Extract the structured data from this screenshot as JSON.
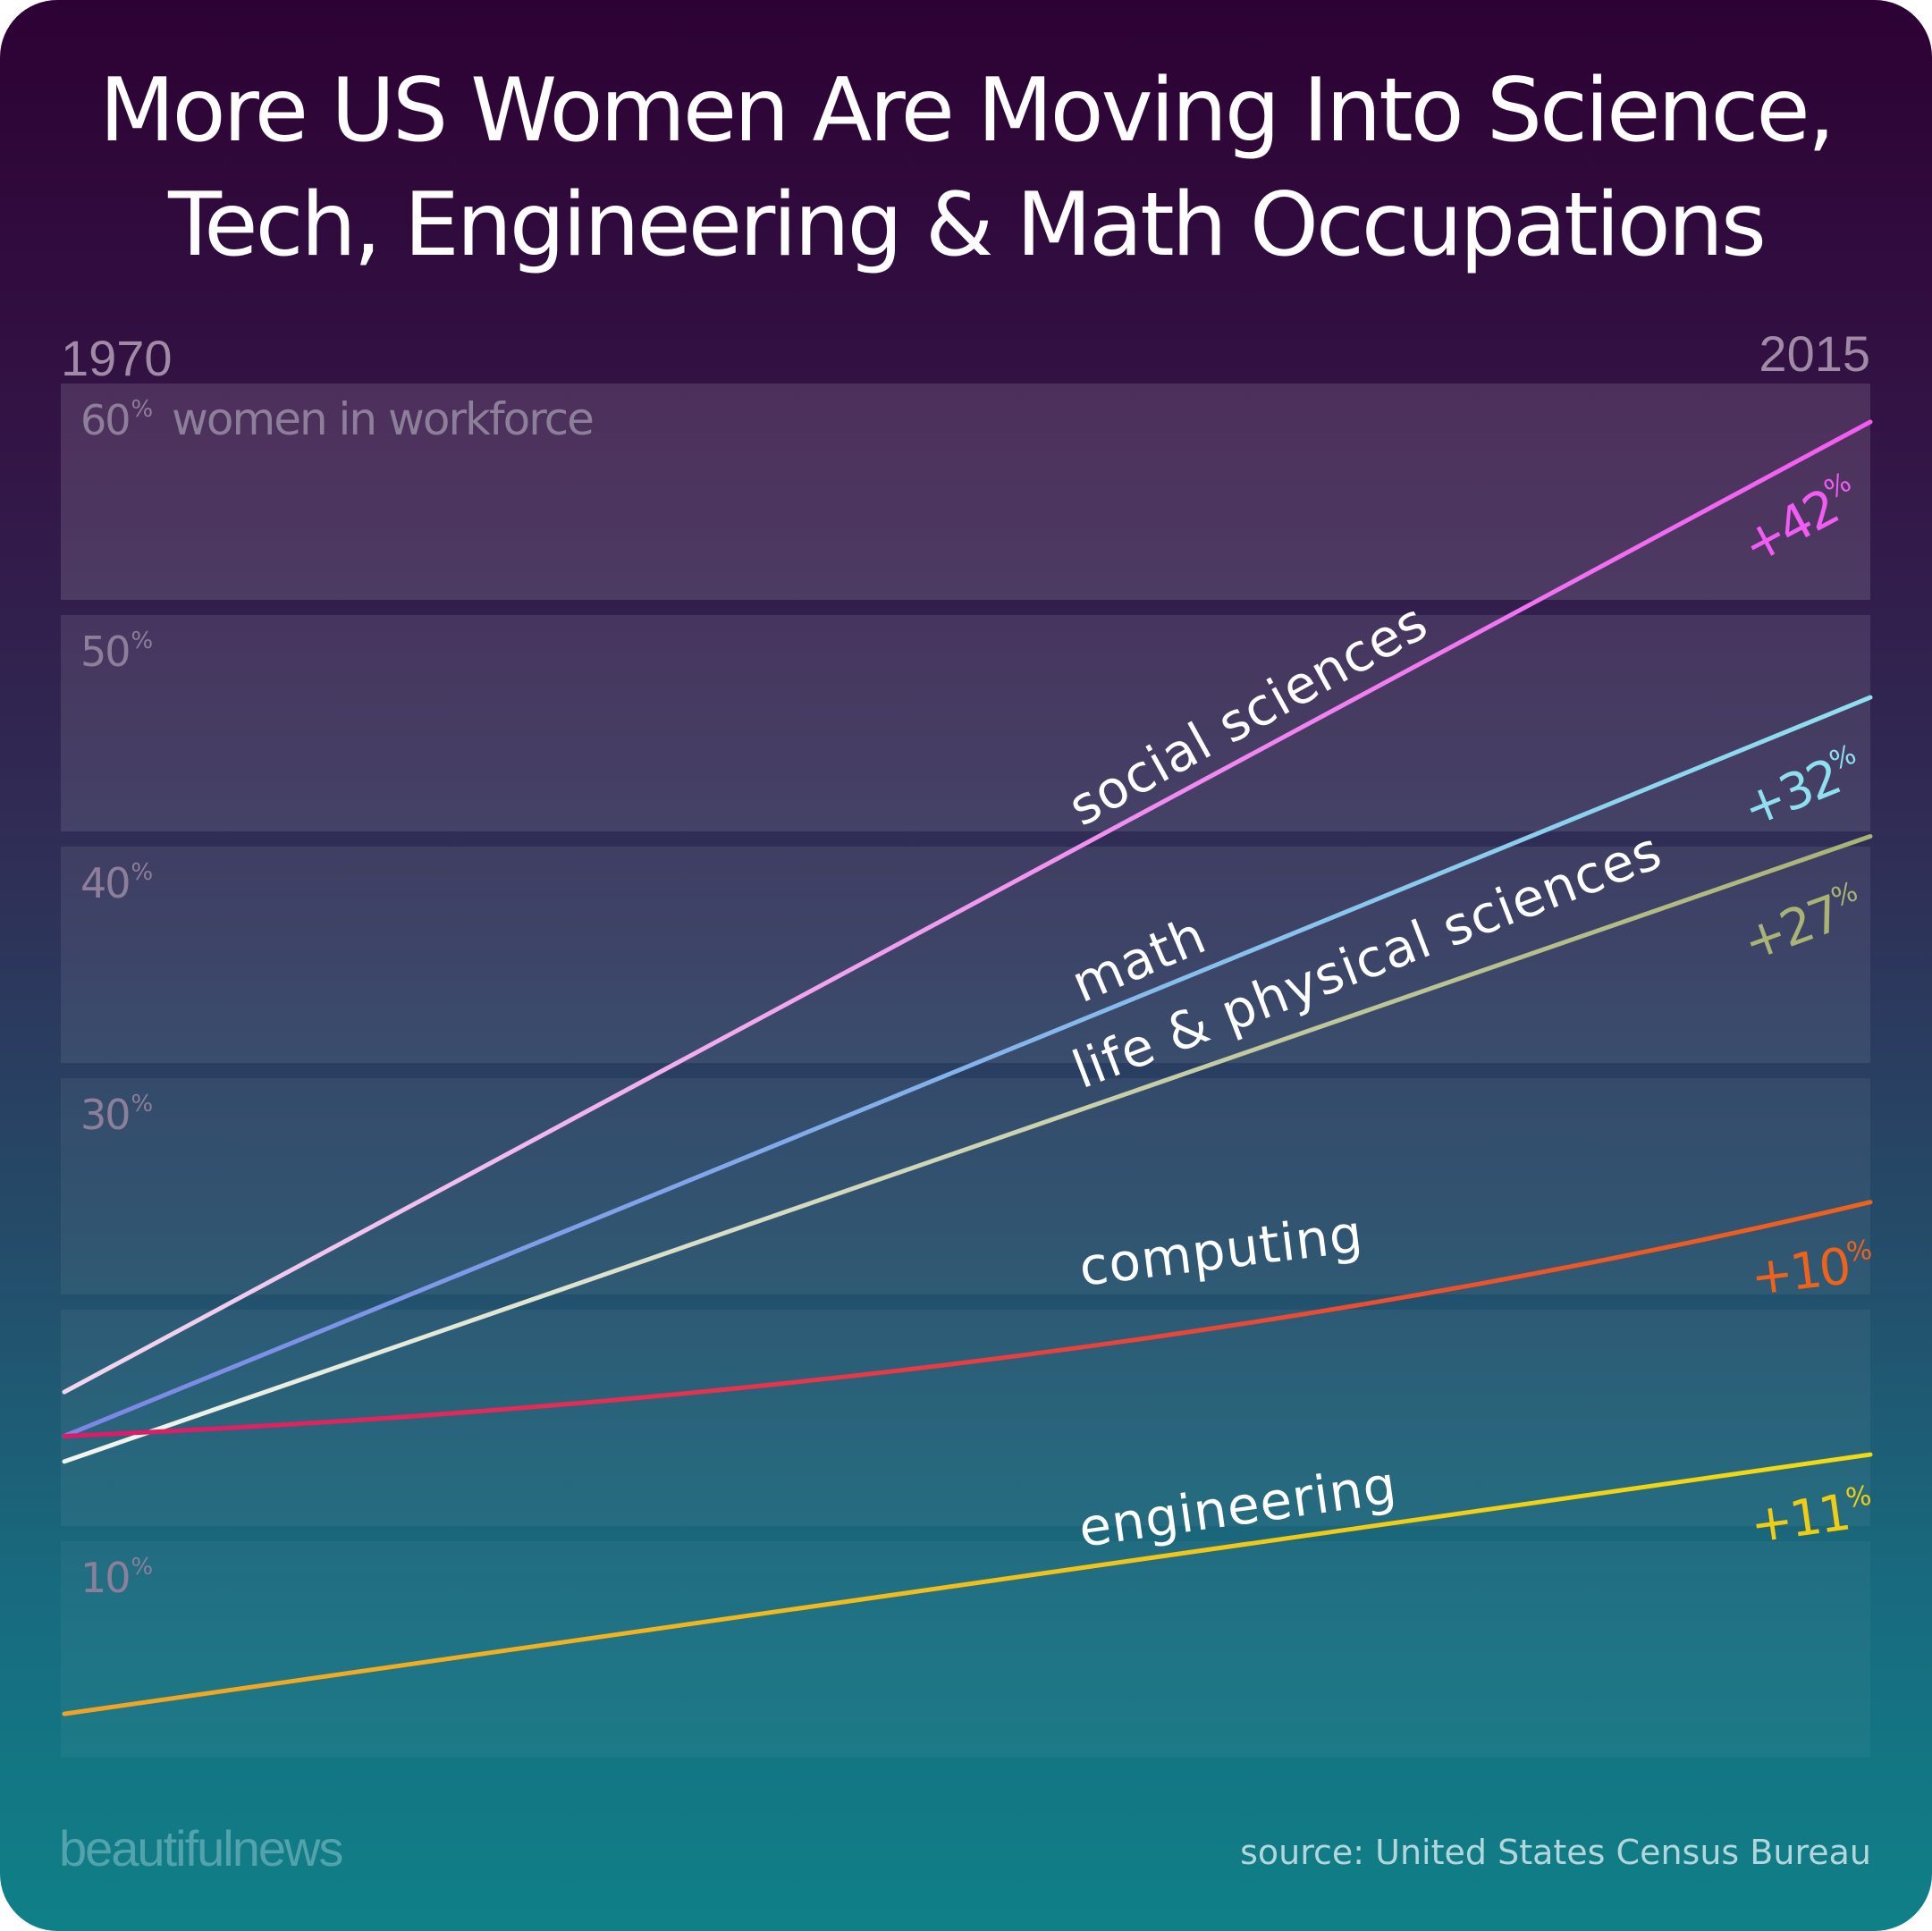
{
  "title": {
    "line1": "More US Women Are Moving Into Science,",
    "line2": "Tech, Engineering & Math Occupations"
  },
  "brand": "beautifulnews",
  "source": "source: United States Census Bureau",
  "colors": {
    "social_sciences": "#f25cf2",
    "math": "#8ee0f0",
    "life_physical_sciences": "#a9b374",
    "computing": "#f0621a",
    "engineering": "#f2cc10"
  },
  "chart_data": {
    "type": "line",
    "x_start_label": "1970",
    "x_end_label": "2015",
    "x": [
      1970,
      2015
    ],
    "ylim": [
      0,
      60
    ],
    "y_ticks": [
      {
        "value": 60,
        "label": "60",
        "unit": "%",
        "annotation": "women in workforce"
      },
      {
        "value": 50,
        "label": "50",
        "unit": "%"
      },
      {
        "value": 40,
        "label": "40",
        "unit": "%"
      },
      {
        "value": 30,
        "label": "30",
        "unit": "%"
      },
      {
        "value": 10,
        "label": "10",
        "unit": "%"
      }
    ],
    "series": [
      {
        "name": "social sciences",
        "key": "social_sciences",
        "values": [
          17.1,
          59.0
        ],
        "change": "+42",
        "change_unit": "%"
      },
      {
        "name": "math",
        "key": "math",
        "values": [
          15.2,
          47.1
        ],
        "change": "+32",
        "change_unit": "%"
      },
      {
        "name": "life & physical sciences",
        "key": "life_physical_sciences",
        "values": [
          14.1,
          41.1
        ],
        "change": "+27",
        "change_unit": "%"
      },
      {
        "name": "computing",
        "key": "computing",
        "values": [
          15.2,
          25.3
        ],
        "change": "+10",
        "change_unit": "%"
      },
      {
        "name": "engineering",
        "key": "engineering",
        "values": [
          3.2,
          14.4
        ],
        "change": "+11",
        "change_unit": "%"
      }
    ]
  }
}
